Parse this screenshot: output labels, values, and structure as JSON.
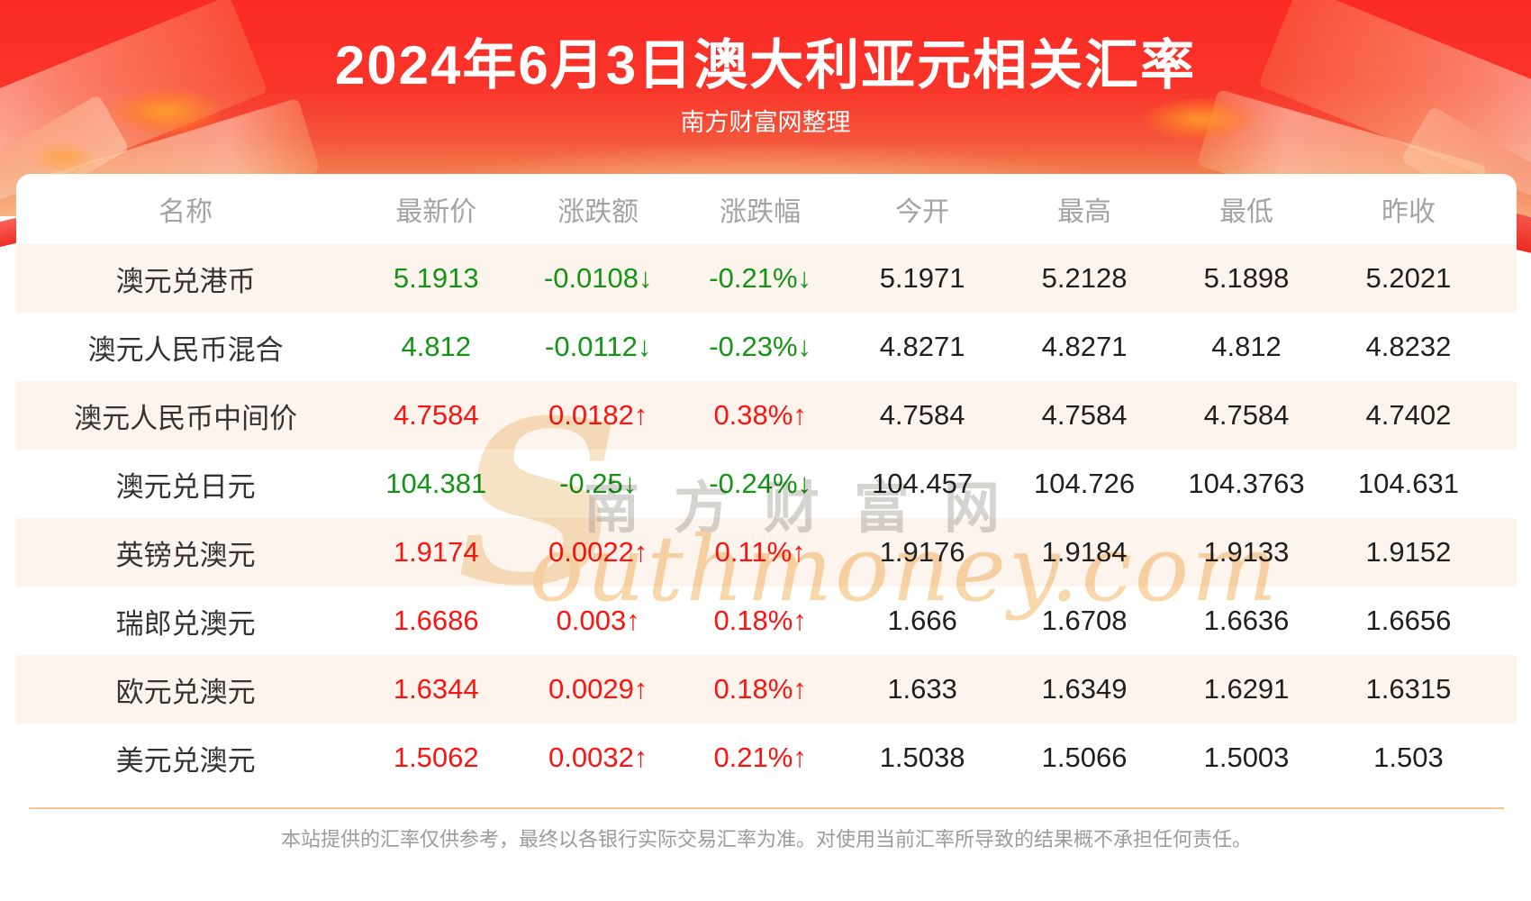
{
  "header": {
    "title": "2024年6月3日澳大利亚元相关汇率",
    "subtitle": "南方财富网整理"
  },
  "table": {
    "columns": [
      "名称",
      "最新价",
      "涨跌额",
      "涨跌幅",
      "今开",
      "最高",
      "最低",
      "昨收"
    ],
    "rows": [
      {
        "name": "澳元兑港币",
        "latest": "5.1913",
        "change": "-0.0108↓",
        "change_pct": "-0.21%↓",
        "open": "5.1971",
        "high": "5.2128",
        "low": "5.1898",
        "prev_close": "5.2021",
        "trend": "down"
      },
      {
        "name": "澳元人民币混合",
        "latest": "4.812",
        "change": "-0.0112↓",
        "change_pct": "-0.23%↓",
        "open": "4.8271",
        "high": "4.8271",
        "low": "4.812",
        "prev_close": "4.8232",
        "trend": "down"
      },
      {
        "name": "澳元人民币中间价",
        "latest": "4.7584",
        "change": "0.0182↑",
        "change_pct": "0.38%↑",
        "open": "4.7584",
        "high": "4.7584",
        "low": "4.7584",
        "prev_close": "4.7402",
        "trend": "up"
      },
      {
        "name": "澳元兑日元",
        "latest": "104.381",
        "change": "-0.25↓",
        "change_pct": "-0.24%↓",
        "open": "104.457",
        "high": "104.726",
        "low": "104.3763",
        "prev_close": "104.631",
        "trend": "down"
      },
      {
        "name": "英镑兑澳元",
        "latest": "1.9174",
        "change": "0.0022↑",
        "change_pct": "0.11%↑",
        "open": "1.9176",
        "high": "1.9184",
        "low": "1.9133",
        "prev_close": "1.9152",
        "trend": "up"
      },
      {
        "name": "瑞郎兑澳元",
        "latest": "1.6686",
        "change": "0.003↑",
        "change_pct": "0.18%↑",
        "open": "1.666",
        "high": "1.6708",
        "low": "1.6636",
        "prev_close": "1.6656",
        "trend": "up"
      },
      {
        "name": "欧元兑澳元",
        "latest": "1.6344",
        "change": "0.0029↑",
        "change_pct": "0.18%↑",
        "open": "1.633",
        "high": "1.6349",
        "low": "1.6291",
        "prev_close": "1.6315",
        "trend": "up"
      },
      {
        "name": "美元兑澳元",
        "latest": "1.5062",
        "change": "0.0032↑",
        "change_pct": "0.21%↑",
        "open": "1.5038",
        "high": "1.5066",
        "low": "1.5003",
        "prev_close": "1.503",
        "trend": "up"
      }
    ]
  },
  "watermark": {
    "cn": "南方财富网",
    "latin_initial": "S",
    "latin_rest": "outhmoney.com"
  },
  "footer": {
    "disclaimer": "本站提供的汇率仅供参考，最终以各银行实际交易汇率为准。对使用当前汇率所导致的结果概不承担任何责任。"
  },
  "colors": {
    "up": "#fb1410",
    "down": "#149414",
    "header_text": "#a3a3a3",
    "row_alt_bg": "#fdf4ed",
    "divider": "#f3c78e",
    "banner_top": "#fb2a25",
    "banner_bottom": "#f7c28c"
  }
}
